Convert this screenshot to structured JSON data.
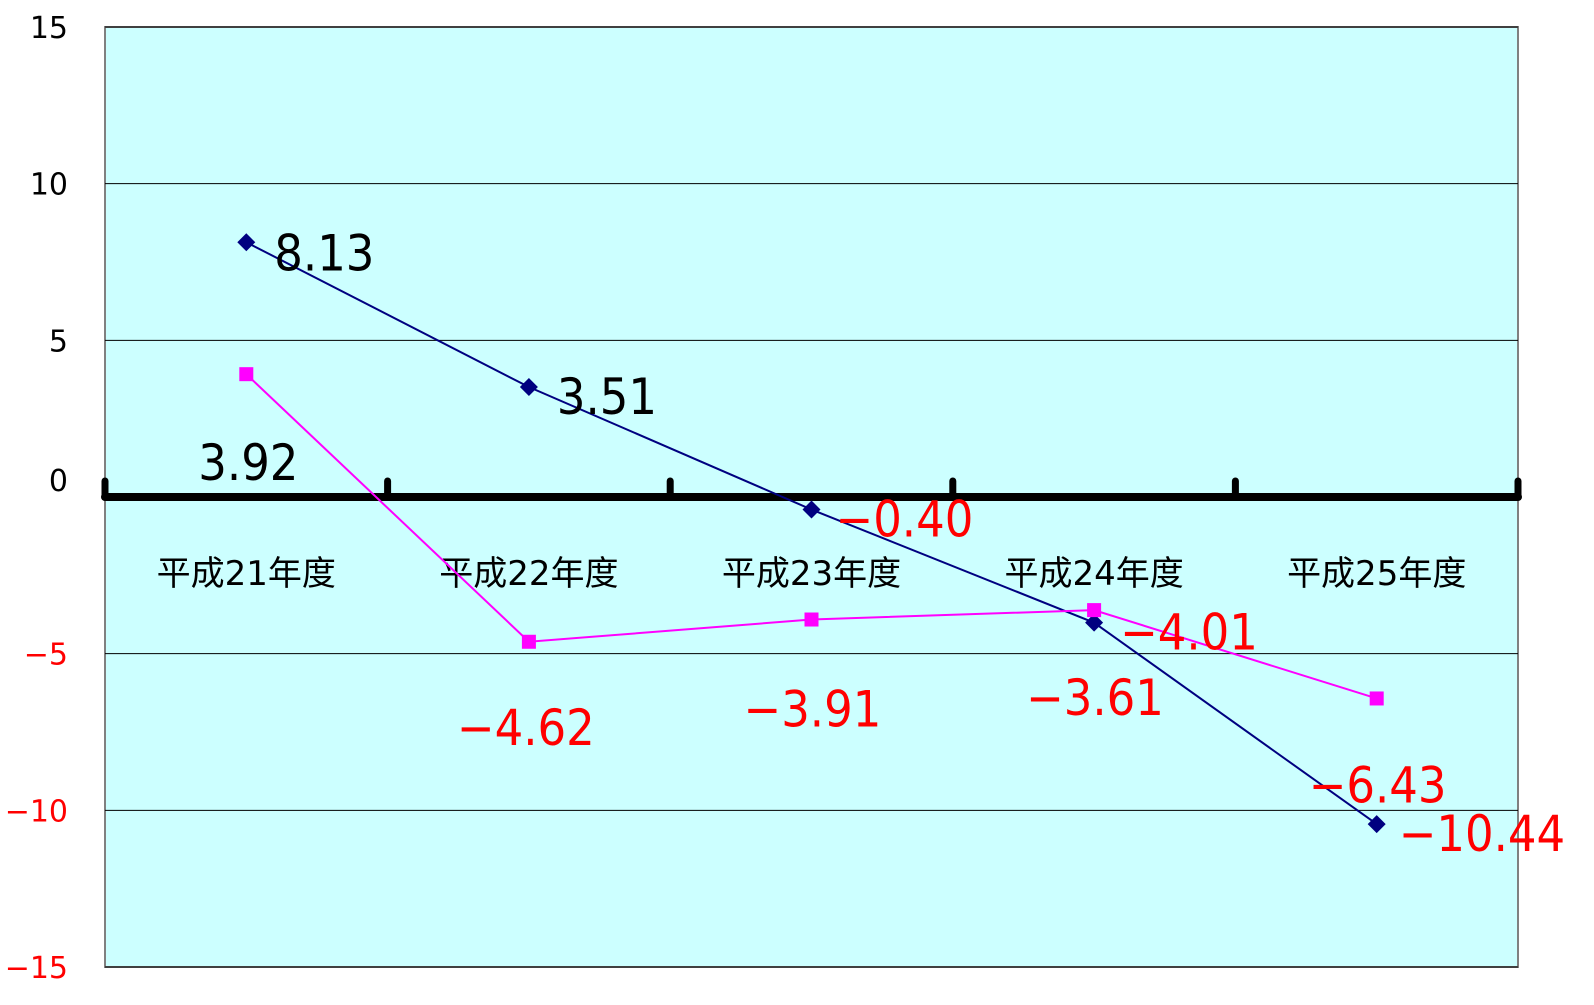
{
  "chart_data": {
    "type": "line",
    "title": "",
    "xlabel": "",
    "ylabel": "",
    "ylim": [
      -15,
      15
    ],
    "yticks": [
      "15",
      "10",
      "5",
      "0",
      "−5",
      "−10",
      "−15"
    ],
    "ytick_values": [
      15,
      10,
      5,
      0,
      -5,
      -10,
      -15
    ],
    "categories": [
      "平成21年度",
      "平成22年度",
      "平成23年度",
      "平成24年度",
      "平成25年度"
    ],
    "grid": true,
    "legend": "none",
    "colors": {
      "plot_background": "#ccffff",
      "positive_label": "#000000",
      "negative_label": "#ff0000",
      "zero_axis": "#000000",
      "gridline": "#000000"
    },
    "series": [
      {
        "color": "#000080",
        "marker": "diamond",
        "values": [
          8.13,
          3.51,
          -0.4,
          -4.01,
          -10.44
        ],
        "labels": [
          "8.13",
          "3.51",
          "−0.40",
          "−4.01",
          "−10.44"
        ]
      },
      {
        "color": "#ff00ff",
        "marker": "square",
        "values": [
          3.92,
          -4.62,
          -3.91,
          -3.61,
          -6.43
        ],
        "labels": [
          "3.92",
          "−4.62",
          "−3.91",
          "−3.61",
          "−6.43"
        ]
      }
    ]
  }
}
